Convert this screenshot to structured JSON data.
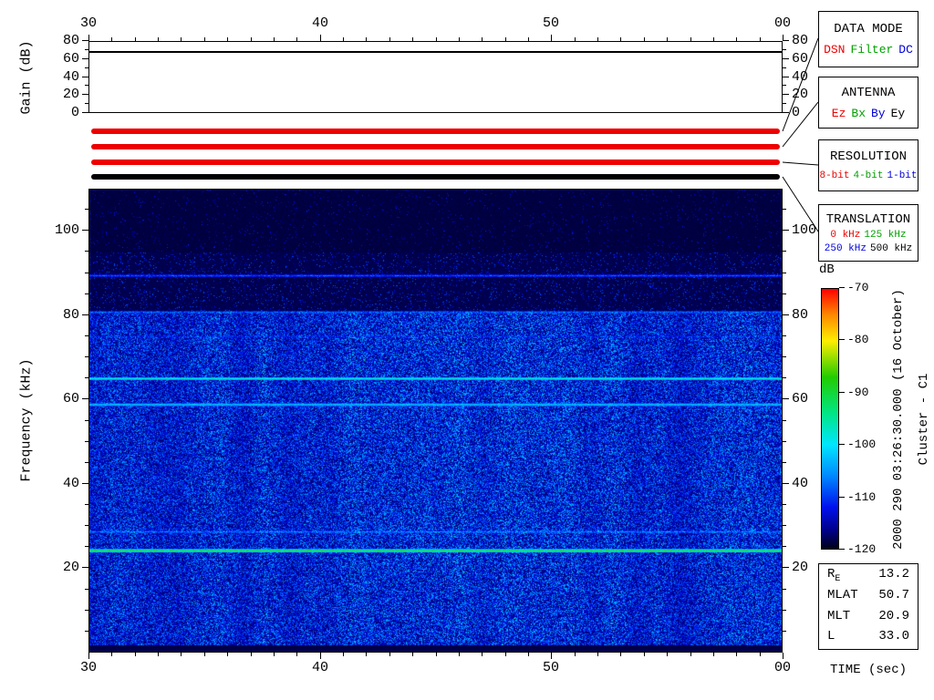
{
  "annotations": {
    "db_label": "dB",
    "datetime_vertical": "2000 290 03:26:30.000 (16 October)",
    "spacecraft_vertical": "Cluster - C1"
  },
  "chart_data": {
    "type": "heatmap",
    "gain_plot": {
      "ylabel": "Gain (dB)",
      "y_ticks_db": [
        0,
        20,
        40,
        60,
        80
      ],
      "y_minor_step_db": 10,
      "y_range_db": [
        0,
        80
      ],
      "x_ticks": [
        {
          "label": "30",
          "sec": 30
        },
        {
          "label": "40",
          "sec": 40
        },
        {
          "label": "50",
          "sec": 50
        },
        {
          "label": "00",
          "sec": 60
        }
      ],
      "x_minor_step_sec": 1,
      "x_range_sec": [
        30,
        60
      ],
      "gain_db": 70
    },
    "spectrogram": {
      "xlabel": "TIME (sec)",
      "ylabel": "Frequency (kHz)",
      "x_ticks": [
        {
          "label": "30",
          "sec": 30
        },
        {
          "label": "40",
          "sec": 40
        },
        {
          "label": "50",
          "sec": 50
        },
        {
          "label": "00",
          "sec": 60
        }
      ],
      "x_minor_step_sec": 1,
      "x_range_sec": [
        30,
        60
      ],
      "y_ticks_khz": [
        20,
        40,
        60,
        80,
        100
      ],
      "y_minor_step_khz": 5,
      "y_range_khz": [
        0,
        110
      ],
      "noise": {
        "lower_band_top_khz": 81,
        "mid_band_top_khz": 95,
        "bottom_dark_khz": 1.5
      },
      "spectral_lines": [
        {
          "freq_khz": 89.5,
          "strength": 0.26,
          "half_width": 0.9,
          "jitter": true
        },
        {
          "freq_khz": 80.8,
          "strength": 0.28,
          "half_width": 1.1,
          "jitter": true
        },
        {
          "freq_khz": 75.0,
          "strength": 0.18,
          "half_width": 0.8,
          "jitter": true
        },
        {
          "freq_khz": 65.0,
          "strength": 0.46,
          "half_width": 1.2,
          "jitter": false
        },
        {
          "freq_khz": 58.8,
          "strength": 0.4,
          "half_width": 1.0,
          "jitter": false
        },
        {
          "freq_khz": 28.5,
          "strength": 0.32,
          "half_width": 1.0,
          "jitter": true
        },
        {
          "freq_khz": 24.0,
          "strength": 0.64,
          "half_width": 1.2,
          "jitter": false
        }
      ]
    },
    "colorbar": {
      "label": "dB",
      "tick_labels": [
        "-70",
        "-80",
        "-90",
        "-100",
        "-110",
        "-120"
      ],
      "range_db": [
        -70,
        -120
      ],
      "stops": [
        {
          "pos": 0,
          "color": "#ff0000"
        },
        {
          "pos": 0.1,
          "color": "#ff8800"
        },
        {
          "pos": 0.2,
          "color": "#ffee00"
        },
        {
          "pos": 0.34,
          "color": "#22cc00"
        },
        {
          "pos": 0.48,
          "color": "#00e687"
        },
        {
          "pos": 0.6,
          "color": "#00e6ff"
        },
        {
          "pos": 0.72,
          "color": "#0088ff"
        },
        {
          "pos": 0.84,
          "color": "#0011ee"
        },
        {
          "pos": 0.93,
          "color": "#000088"
        },
        {
          "pos": 1,
          "color": "#000018"
        }
      ]
    }
  },
  "status_bars": [
    {
      "name": "data-mode",
      "value": "DSN",
      "color": "#ee0000"
    },
    {
      "name": "antenna",
      "value": "Ez",
      "color": "#ee0000"
    },
    {
      "name": "resolution",
      "value": "8-bit",
      "color": "#ee0000"
    },
    {
      "name": "translation",
      "value": "500 kHz",
      "color": "#000000"
    }
  ],
  "legend_boxes": [
    {
      "title": "DATA MODE",
      "rows": [
        [
          {
            "label": "DSN",
            "color": "#ee0000"
          },
          {
            "label": "Filter",
            "color": "#00a000"
          },
          {
            "label": "DC",
            "color": "#0000dd"
          }
        ]
      ]
    },
    {
      "title": "ANTENNA",
      "rows": [
        [
          {
            "label": "Ez",
            "color": "#ee0000"
          },
          {
            "label": "Bx",
            "color": "#00a000"
          },
          {
            "label": "By",
            "color": "#0000dd"
          },
          {
            "label": "Ey",
            "color": "#000000"
          }
        ]
      ]
    },
    {
      "title": "RESOLUTION",
      "rows": [
        [
          {
            "label": "8-bit",
            "color": "#ee0000"
          },
          {
            "label": "4-bit",
            "color": "#00a000"
          },
          {
            "label": "1-bit",
            "color": "#0000dd"
          }
        ]
      ]
    },
    {
      "title": "TRANSLATION",
      "rows": [
        [
          {
            "label": "0 kHz",
            "color": "#ee0000"
          },
          {
            "label": "125 kHz",
            "color": "#00a000"
          }
        ],
        [
          {
            "label": "250 kHz",
            "color": "#0000dd"
          },
          {
            "label": "500 kHz",
            "color": "#000000"
          }
        ]
      ]
    }
  ],
  "info_box": {
    "rows": [
      {
        "label_main": "R",
        "label_sub": "E",
        "value": "13.2"
      },
      {
        "label_main": "MLAT",
        "label_sub": "",
        "value": "50.7"
      },
      {
        "label_main": "MLT",
        "label_sub": "",
        "value": "20.9"
      },
      {
        "label_main": "L",
        "label_sub": "",
        "value": "33.0"
      }
    ]
  }
}
